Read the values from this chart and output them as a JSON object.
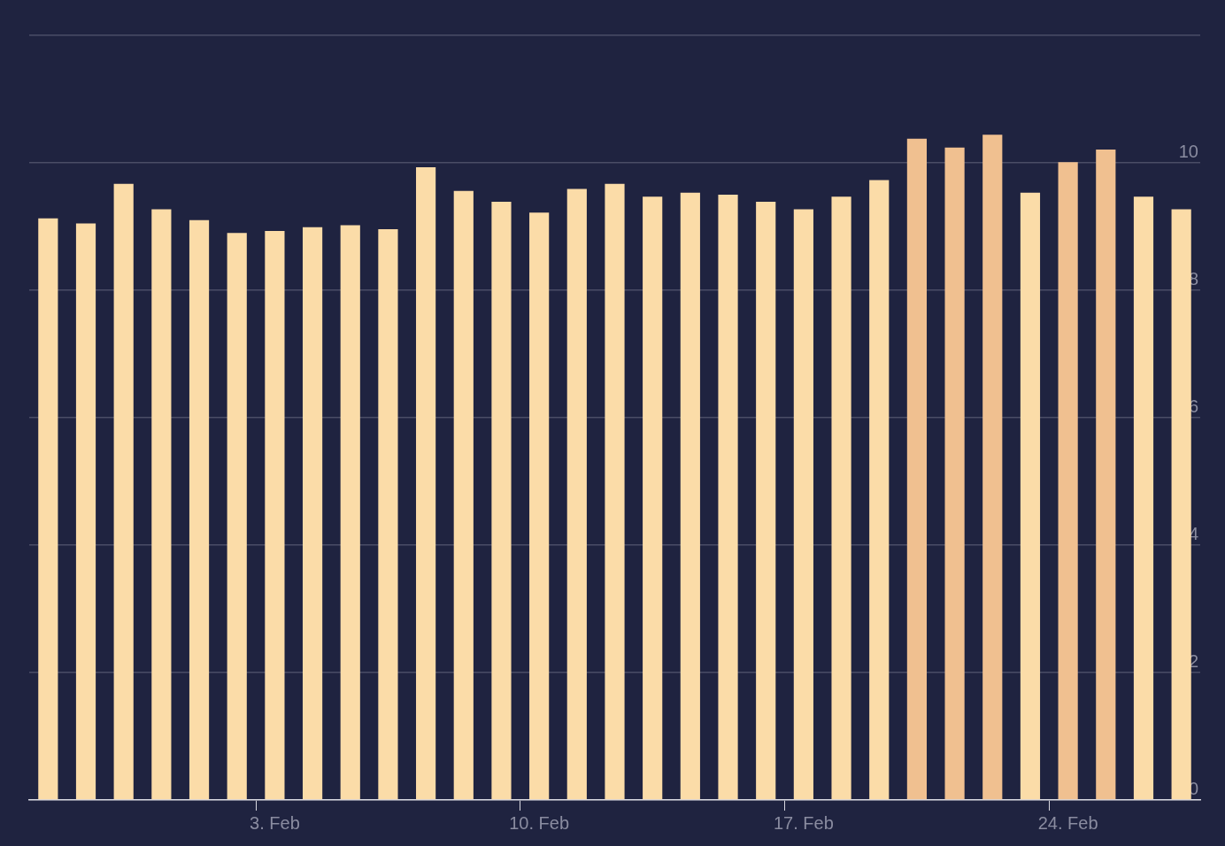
{
  "chart_data": {
    "type": "bar",
    "categories": [
      null,
      null,
      null,
      null,
      null,
      null,
      "3. Feb",
      null,
      null,
      null,
      null,
      null,
      null,
      "10. Feb",
      null,
      null,
      null,
      null,
      null,
      null,
      "17. Feb",
      null,
      null,
      null,
      null,
      null,
      null,
      "24. Feb",
      null,
      null,
      null
    ],
    "values": [
      9.13,
      9.05,
      9.67,
      9.27,
      9.1,
      8.9,
      8.93,
      8.99,
      9.02,
      8.96,
      9.93,
      9.56,
      9.39,
      9.22,
      9.59,
      9.67,
      9.47,
      9.53,
      9.5,
      9.39,
      9.27,
      9.47,
      9.73,
      10.38,
      10.24,
      10.44,
      9.53,
      10.01,
      10.21,
      9.47,
      9.27
    ],
    "colors": [
      "#fbdca8",
      "#fbdca8",
      "#fbdca8",
      "#fbdca8",
      "#fbdca8",
      "#fbdca8",
      "#fbdca8",
      "#fbdca8",
      "#fbdca8",
      "#fbdca8",
      "#fbdca8",
      "#fbdca8",
      "#fbdca8",
      "#fbdca8",
      "#fbdca8",
      "#fbdca8",
      "#fbdca8",
      "#fbdca8",
      "#fbdca8",
      "#fbdca8",
      "#fbdca8",
      "#fbdca8",
      "#fbdca8",
      "#f0c090",
      "#f0c090",
      "#f0c090",
      "#fbdca8",
      "#f0c090",
      "#f0c090",
      "#fbdca8",
      "#fbdca8"
    ],
    "ylim": [
      0,
      12
    ],
    "yticks": [
      0,
      2,
      4,
      6,
      8,
      10,
      {
        "value": 12,
        "label": null
      }
    ],
    "grid": "y"
  }
}
